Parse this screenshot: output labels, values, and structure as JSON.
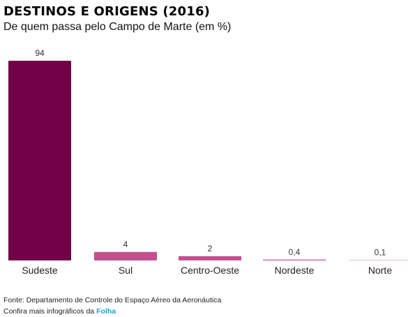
{
  "chart_data": {
    "type": "bar",
    "title": "DESTINOS E ORIGENS (2016)",
    "subtitle": "De quem passa pelo Campo de Marte (em %)",
    "categories": [
      "Sudeste",
      "Sul",
      "Centro-Oeste",
      "Nordeste",
      "Norte"
    ],
    "values": [
      94,
      4,
      2,
      0.4,
      0.1
    ],
    "value_labels": [
      "94",
      "4",
      "2",
      "0,4",
      "0,1"
    ],
    "ylim": [
      0,
      94
    ],
    "grid": false,
    "colors": [
      "#720047",
      "#c2508f",
      "#c2508f",
      "#c2508f",
      "#c2508f"
    ]
  },
  "footer": {
    "source": "Fonte: Departamento de Controle do Espaço Aéreo da Aeronáutica",
    "more_prefix": "Confira mais infográficos da ",
    "brand": "Folha"
  }
}
